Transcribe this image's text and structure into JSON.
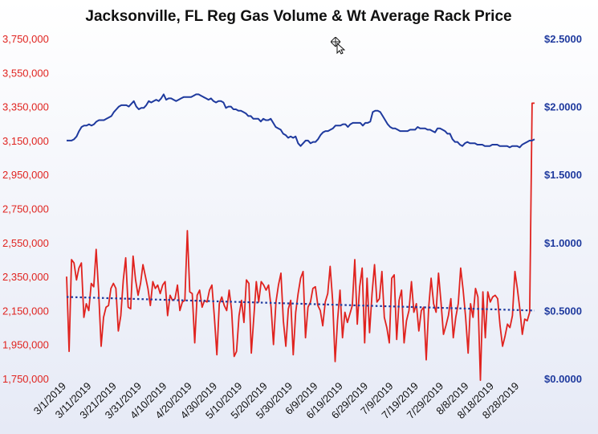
{
  "chart_data": {
    "type": "line",
    "title": "Jacksonville, FL Reg Gas Volume & Wt Average Rack Price",
    "x_ticks": [
      "3/1/2019",
      "3/11/2019",
      "3/21/2019",
      "3/31/2019",
      "4/10/2019",
      "4/20/2019",
      "4/30/2019",
      "5/10/2019",
      "5/20/2019",
      "5/30/2019",
      "6/9/2019",
      "6/19/2019",
      "6/29/2019",
      "7/9/2019",
      "7/19/2019",
      "7/29/2019",
      "8/8/2019",
      "8/18/2019",
      "8/28/2019"
    ],
    "x_range": [
      "3/1/2019",
      "9/3/2019"
    ],
    "left_axis": {
      "ticks": [
        "1,750,000",
        "1,950,000",
        "2,150,000",
        "2,350,000",
        "2,550,000",
        "2,750,000",
        "2,950,000",
        "3,150,000",
        "3,350,000",
        "3,550,000",
        "3,750,000"
      ],
      "ylim": [
        1750000,
        3750000
      ],
      "color": "#e0231f"
    },
    "right_axis": {
      "ticks": [
        "$0.0000",
        "$0.5000",
        "$1.0000",
        "$1.5000",
        "$2.0000",
        "$2.5000"
      ],
      "ylim": [
        0,
        2.5
      ],
      "color": "#1f3a9e"
    },
    "series": [
      {
        "axis": "left",
        "color": "#e0231f",
        "values": [
          2350000,
          1910000,
          2450000,
          2430000,
          2330000,
          2400000,
          2430000,
          2110000,
          2190000,
          2150000,
          2310000,
          2290000,
          2510000,
          2260000,
          1940000,
          2110000,
          2170000,
          2180000,
          2280000,
          2310000,
          2280000,
          2030000,
          2120000,
          2330000,
          2460000,
          2170000,
          2160000,
          2470000,
          2330000,
          2240000,
          2310000,
          2420000,
          2350000,
          2280000,
          2180000,
          2320000,
          2280000,
          2300000,
          2250000,
          2300000,
          2320000,
          2120000,
          2240000,
          2210000,
          2220000,
          2300000,
          2150000,
          2200000,
          2210000,
          2620000,
          2260000,
          2250000,
          1960000,
          2240000,
          2270000,
          2170000,
          2210000,
          2200000,
          2270000,
          2300000,
          2110000,
          1890000,
          2190000,
          2230000,
          2180000,
          2150000,
          2270000,
          2150000,
          1880000,
          1910000,
          2120000,
          2210000,
          2080000,
          2330000,
          2310000,
          1900000,
          2110000,
          2320000,
          2200000,
          2320000,
          2300000,
          2270000,
          2300000,
          2170000,
          1950000,
          2200000,
          2300000,
          2370000,
          2090000,
          1940000,
          2160000,
          2210000,
          1890000,
          2140000,
          2250000,
          2340000,
          2380000,
          1990000,
          2170000,
          2200000,
          2280000,
          2290000,
          2180000,
          2150000,
          2060000,
          2200000,
          2250000,
          2410000,
          2210000,
          1850000,
          2090000,
          2270000,
          1990000,
          2140000,
          2080000,
          2130000,
          2180000,
          2450000,
          2070000,
          2290000,
          2400000,
          1960000,
          2340000,
          2020000,
          2250000,
          2420000,
          2200000,
          2220000,
          2380000,
          2110000,
          2050000,
          1960000,
          2340000,
          2360000,
          1980000,
          2210000,
          2270000,
          1960000,
          2090000,
          2150000,
          2320000,
          2140000,
          2190000,
          2030000,
          2150000,
          2170000,
          1860000,
          2170000,
          2340000,
          2190000,
          2140000,
          2370000,
          2200000,
          2010000,
          2060000,
          2120000,
          2220000,
          1990000,
          2110000,
          2190000,
          2400000,
          2270000,
          2110000,
          1900000,
          2190000,
          2110000,
          2280000,
          2230000,
          1740000,
          2260000,
          1990000,
          2260000,
          2200000,
          2230000,
          2240000,
          2220000,
          2060000,
          1940000,
          2000000,
          2070000,
          2050000,
          2120000,
          2380000,
          2280000,
          2160000,
          2010000,
          2100000,
          2090000,
          2140000,
          3370000,
          3370000
        ]
      },
      {
        "axis": "right",
        "color": "#1f3a9e",
        "values": [
          1.75,
          1.75,
          1.75,
          1.76,
          1.78,
          1.82,
          1.85,
          1.86,
          1.86,
          1.87,
          1.86,
          1.87,
          1.89,
          1.9,
          1.9,
          1.9,
          1.91,
          1.92,
          1.93,
          1.96,
          1.98,
          2.0,
          2.01,
          2.01,
          2.01,
          2.0,
          2.02,
          2.04,
          2.0,
          1.98,
          1.99,
          1.99,
          2.01,
          2.04,
          2.03,
          2.04,
          2.05,
          2.04,
          2.06,
          2.09,
          2.05,
          2.06,
          2.06,
          2.05,
          2.04,
          2.05,
          2.06,
          2.07,
          2.07,
          2.07,
          2.07,
          2.08,
          2.09,
          2.09,
          2.08,
          2.07,
          2.06,
          2.05,
          2.06,
          2.04,
          2.03,
          2.04,
          2.04,
          2.03,
          1.99,
          2.0,
          2.0,
          1.98,
          1.98,
          1.97,
          1.97,
          1.96,
          1.95,
          1.93,
          1.93,
          1.91,
          1.91,
          1.91,
          1.89,
          1.91,
          1.9,
          1.9,
          1.91,
          1.88,
          1.85,
          1.84,
          1.83,
          1.8,
          1.79,
          1.77,
          1.78,
          1.77,
          1.78,
          1.73,
          1.71,
          1.73,
          1.75,
          1.75,
          1.73,
          1.74,
          1.74,
          1.76,
          1.79,
          1.81,
          1.82,
          1.82,
          1.83,
          1.84,
          1.86,
          1.86,
          1.86,
          1.87,
          1.87,
          1.85,
          1.87,
          1.88,
          1.88,
          1.88,
          1.88,
          1.86,
          1.88,
          1.88,
          1.89,
          1.96,
          1.97,
          1.97,
          1.96,
          1.93,
          1.9,
          1.87,
          1.85,
          1.84,
          1.84,
          1.83,
          1.82,
          1.82,
          1.82,
          1.82,
          1.83,
          1.83,
          1.83,
          1.85,
          1.84,
          1.84,
          1.84,
          1.83,
          1.83,
          1.82,
          1.81,
          1.84,
          1.84,
          1.83,
          1.82,
          1.8,
          1.8,
          1.76,
          1.74,
          1.74,
          1.72,
          1.71,
          1.73,
          1.74,
          1.73,
          1.73,
          1.73,
          1.72,
          1.72,
          1.72,
          1.71,
          1.71,
          1.71,
          1.72,
          1.72,
          1.72,
          1.71,
          1.71,
          1.71,
          1.71,
          1.7,
          1.71,
          1.71,
          1.71,
          1.7,
          1.72,
          1.73,
          1.74,
          1.75,
          1.75,
          1.76
        ]
      },
      {
        "axis": "left",
        "color": "#1f3a9e",
        "style": "dotted trend",
        "start": 2230000,
        "end": 2150000
      }
    ],
    "grid": false,
    "legend": "none"
  },
  "icons": {
    "cursor": "move-cursor-icon"
  }
}
